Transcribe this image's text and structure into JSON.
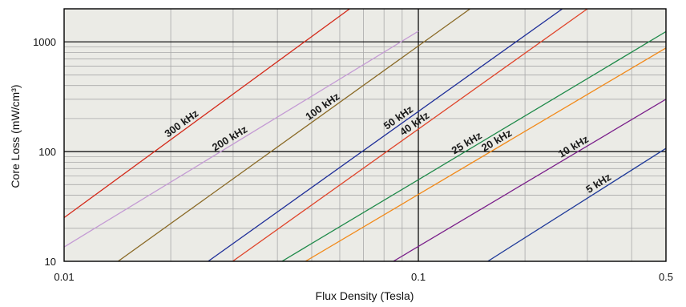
{
  "chart_data": {
    "type": "line",
    "title": "",
    "xlabel": "Flux Density (Tesla)",
    "ylabel": "Core Loss (mW/cm³)",
    "x_scale": "log",
    "y_scale": "log",
    "xlim": [
      0.01,
      0.5
    ],
    "ylim": [
      10,
      2000
    ],
    "x_tick_labels": [
      "0.01",
      "0.1",
      "0.5"
    ],
    "x_tick_values": [
      0.01,
      0.1,
      0.5
    ],
    "y_tick_labels": [
      "10",
      "100",
      "1000"
    ],
    "y_tick_values": [
      10,
      100,
      1000
    ],
    "grid": true,
    "legend": "none",
    "series": [
      {
        "name": "300 kHz",
        "color": "#d42a1a",
        "x": [
          0.01,
          0.064
        ],
        "y": [
          25,
          2000
        ]
      },
      {
        "name": "200 kHz",
        "color": "#c49bd4",
        "x": [
          0.01,
          0.1
        ],
        "y": [
          13.5,
          1250
        ]
      },
      {
        "name": "100 kHz",
        "color": "#8a6a26",
        "x": [
          0.0142,
          0.14
        ],
        "y": [
          10,
          2000
        ]
      },
      {
        "name": "50 kHz",
        "color": "#1f2f99",
        "x": [
          0.0255,
          0.255
        ],
        "y": [
          10,
          2000
        ]
      },
      {
        "name": "40 kHz",
        "color": "#e0452b",
        "x": [
          0.0299,
          0.3
        ],
        "y": [
          10,
          2000
        ]
      },
      {
        "name": "25 kHz",
        "color": "#1f8a4a",
        "x": [
          0.0412,
          0.5
        ],
        "y": [
          10,
          1240
        ]
      },
      {
        "name": "20 kHz",
        "color": "#f28a1a",
        "x": [
          0.048,
          0.5
        ],
        "y": [
          10,
          880
        ]
      },
      {
        "name": "10 kHz",
        "color": "#7a1f8a",
        "x": [
          0.085,
          0.5
        ],
        "y": [
          10,
          300
        ]
      },
      {
        "name": "5 kHz",
        "color": "#1f3a99",
        "x": [
          0.157,
          0.5
        ],
        "y": [
          10,
          107
        ]
      }
    ],
    "annotations": [
      "300 kHz",
      "200 kHz",
      "100 kHz",
      "50 kHz",
      "40 kHz",
      "25 kHz",
      "20 kHz",
      "10 kHz",
      "5 kHz"
    ]
  },
  "colors": {
    "plot_background": "#ebebe6",
    "minor_grid": "#a9a9a9",
    "major_grid": "#000000"
  }
}
